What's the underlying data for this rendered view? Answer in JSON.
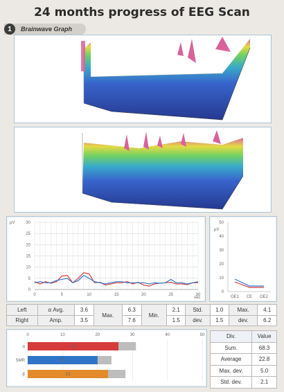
{
  "title": "24 months progress of EEG Scan",
  "section": {
    "number": "1",
    "label": "Brainwave Graph"
  },
  "line_chart": {
    "ylabel": "µV",
    "xlabel": "sec",
    "y_ticks": [
      "30",
      "25",
      "20",
      "15",
      "10",
      "5",
      "0"
    ],
    "x_ticks": [
      "0",
      "5",
      "10",
      "15",
      "20",
      "25",
      "30"
    ]
  },
  "mini_chart": {
    "ylabel": "µV",
    "y_ticks": [
      "50",
      "40",
      "30",
      "20",
      "10",
      "0"
    ],
    "x_ticks": [
      "OE1",
      "CE",
      "OE2"
    ]
  },
  "stats": {
    "row_labels": [
      "Left",
      "Right"
    ],
    "avg_label": [
      "α Avg.",
      "Amp."
    ],
    "avg": [
      "3.6",
      "3.5"
    ],
    "max_label": "Max.",
    "max": [
      "6.3",
      "7.6"
    ],
    "min_label": "Min.",
    "min": [
      "2.1",
      "1.5"
    ],
    "std_label": [
      "Std.",
      "dev."
    ],
    "std": [
      "1.0",
      "1.5"
    ],
    "maxdev_label": [
      "Max.",
      "dev."
    ],
    "maxdev": [
      "4.1",
      "6.2"
    ]
  },
  "bar_chart": {
    "x_ticks": [
      "0",
      "10",
      "20",
      "30",
      "40",
      "50"
    ],
    "bars": [
      {
        "label": "α",
        "value_label": "26",
        "color": "#d63a3a"
      },
      {
        "label": "SMR",
        "value_label": "20",
        "color": "#2f74c6"
      },
      {
        "label": "-β",
        "value_label": "23",
        "color": "#e38b2a"
      }
    ]
  },
  "div_table": {
    "header": [
      "Div.",
      "Value"
    ],
    "rows": [
      [
        "Sum.",
        "68.3"
      ],
      [
        "Average",
        "22.8"
      ],
      [
        "Max. dev.",
        "5.0"
      ],
      [
        "Std. dev.",
        "2.1"
      ]
    ]
  },
  "chart_data": [
    {
      "type": "line",
      "title": "",
      "xlabel": "sec",
      "ylabel": "µV",
      "ylim": [
        0,
        30
      ],
      "xlim": [
        0,
        30
      ],
      "series": [
        {
          "color": "#d63a3a",
          "x": [
            0,
            1,
            2,
            3,
            4,
            5,
            6,
            7,
            8,
            9,
            10,
            11,
            12,
            13,
            14,
            15,
            16,
            17,
            18,
            19,
            20,
            21,
            22,
            23,
            24,
            25,
            26,
            27,
            28,
            29,
            30
          ],
          "values": [
            3.5,
            2.5,
            3.5,
            2.8,
            3.5,
            6.0,
            6.3,
            3.0,
            5.0,
            7.5,
            7.0,
            3.0,
            3.2,
            2.0,
            2.5,
            3.0,
            3.0,
            3.5,
            2.5,
            3.2,
            2.0,
            1.5,
            2.5,
            2.8,
            3.0,
            3.2,
            2.5,
            2.5,
            2.2,
            3.0,
            3.0
          ]
        },
        {
          "color": "#2f74c6",
          "x": [
            0,
            1,
            2,
            3,
            4,
            5,
            6,
            7,
            8,
            9,
            10,
            11,
            12,
            13,
            14,
            15,
            16,
            17,
            18,
            19,
            20,
            21,
            22,
            23,
            24,
            25,
            26,
            27,
            28,
            29,
            30
          ],
          "values": [
            3.0,
            3.5,
            3.0,
            3.0,
            4.0,
            4.5,
            5.0,
            3.0,
            4.0,
            6.3,
            5.0,
            3.5,
            3.0,
            2.5,
            3.0,
            3.5,
            3.5,
            3.0,
            3.0,
            3.0,
            3.0,
            2.5,
            3.0,
            2.8,
            3.0,
            4.5,
            3.0,
            3.0,
            2.5,
            3.0,
            3.5
          ]
        }
      ]
    },
    {
      "type": "line",
      "title": "",
      "ylabel": "µV",
      "ylim": [
        0,
        50
      ],
      "categories": [
        "OE1",
        "CE",
        "OE2"
      ],
      "series": [
        {
          "color": "#2f74c6",
          "values": [
            9,
            4,
            4
          ]
        },
        {
          "color": "#d63a3a",
          "values": [
            7,
            3,
            3
          ]
        }
      ]
    },
    {
      "type": "bar",
      "title": "",
      "orientation": "horizontal",
      "xlim": [
        0,
        50
      ],
      "categories": [
        "α",
        "SMR",
        "-β"
      ],
      "values": [
        26,
        20,
        23
      ],
      "remainder": [
        31,
        24,
        28
      ]
    }
  ]
}
